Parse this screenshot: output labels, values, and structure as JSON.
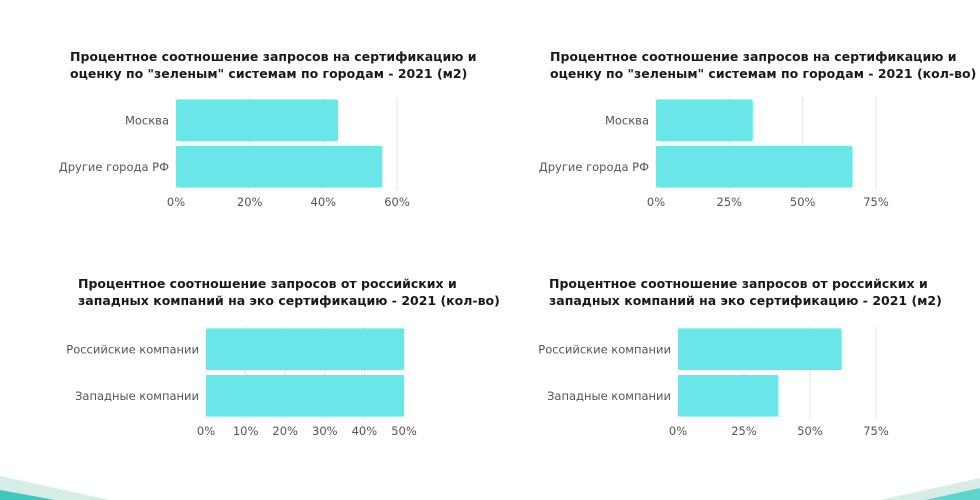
{
  "colors": {
    "bar": "#6be6e8",
    "grid": "#e4e4e4",
    "accent_teal": "#3fc7bf",
    "accent_light": "#cfe9e4"
  },
  "chart_data": [
    {
      "type": "bar",
      "orientation": "horizontal",
      "title_lines": [
        "Процентное соотношение запросов на сертификацию и",
        "оценку по \"зеленым\" системам по городам - 2021 (м2)"
      ],
      "categories": [
        "Москва",
        "Другие города РФ"
      ],
      "values": [
        44,
        56
      ],
      "ticks": [
        0,
        20,
        40,
        60
      ],
      "tick_labels": [
        "0%",
        "20%",
        "40%",
        "60%"
      ],
      "xlim": [
        0,
        60
      ],
      "grid": true
    },
    {
      "type": "bar",
      "orientation": "horizontal",
      "title_lines": [
        "Процентное соотношение запросов на сертификацию и",
        "оценку по \"зеленым\" системам по городам - 2021 (кол-во)"
      ],
      "categories": [
        "Москва",
        "Другие города РФ"
      ],
      "values": [
        33,
        67
      ],
      "ticks": [
        0,
        25,
        50,
        75
      ],
      "tick_labels": [
        "0%",
        "25%",
        "50%",
        "75%"
      ],
      "xlim": [
        0,
        75
      ],
      "grid": true
    },
    {
      "type": "bar",
      "orientation": "horizontal",
      "title_lines": [
        "Процентное соотношение запросов от российских и",
        "западных компаний на эко сертификацию - 2021 (кол-во)"
      ],
      "categories": [
        "Российские компании",
        "Западные компании"
      ],
      "values": [
        50,
        50
      ],
      "ticks": [
        0,
        10,
        20,
        30,
        40,
        50
      ],
      "tick_labels": [
        "0%",
        "10%",
        "20%",
        "30%",
        "40%",
        "50%"
      ],
      "xlim": [
        0,
        50
      ],
      "grid": true
    },
    {
      "type": "bar",
      "orientation": "horizontal",
      "title_lines": [
        "Процентное соотношение запросов от российских и",
        "западных компаний на эко сертификацию - 2021 (м2)"
      ],
      "categories": [
        "Российские компании",
        "Западные компании"
      ],
      "values": [
        62,
        38
      ],
      "ticks": [
        0,
        25,
        50,
        75
      ],
      "tick_labels": [
        "0%",
        "25%",
        "50%",
        "75%"
      ],
      "xlim": [
        0,
        75
      ],
      "grid": true
    }
  ]
}
